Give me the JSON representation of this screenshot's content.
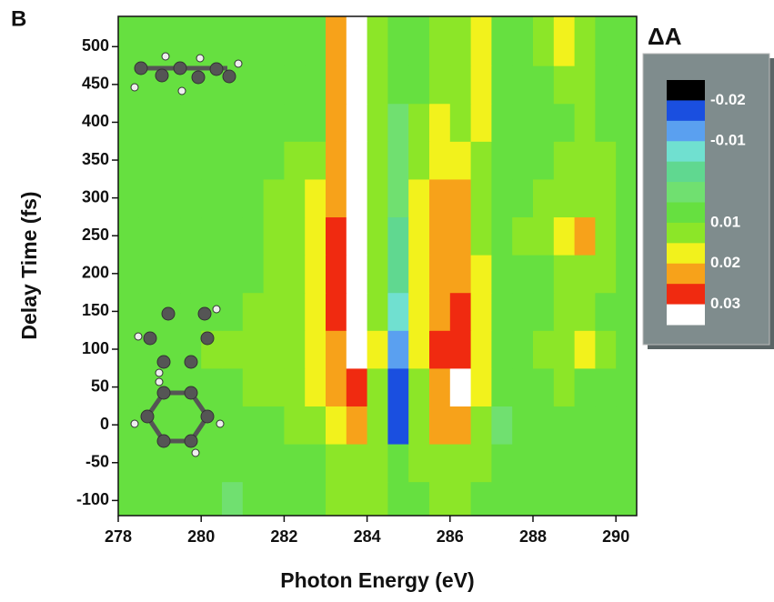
{
  "chart_data": {
    "type": "heatmap",
    "panel_label": "B",
    "x_label": "Photon Energy (eV)",
    "y_label": "Delay Time (fs)",
    "colorbar_title": "ΔA",
    "x": [
      278.25,
      278.75,
      279.25,
      279.75,
      280.25,
      280.75,
      281.25,
      281.75,
      282.25,
      282.75,
      283.25,
      283.75,
      284.25,
      284.75,
      285.25,
      285.75,
      286.25,
      286.75,
      287.25,
      287.75,
      288.25,
      288.75,
      289.25,
      289.75,
      290.25
    ],
    "y": [
      -100,
      -50,
      0,
      50,
      100,
      150,
      200,
      250,
      300,
      350,
      400,
      450,
      500
    ],
    "values": [
      [
        0.006,
        0.006,
        0.005,
        0.006,
        0.005,
        0.004,
        0.005,
        0.006,
        0.007,
        0.008,
        0.01,
        0.012,
        0.01,
        0.008,
        0.009,
        0.012,
        0.012,
        0.009,
        0.007,
        0.006,
        0.006,
        0.007,
        0.008,
        0.007,
        0.005
      ],
      [
        0.007,
        0.007,
        0.006,
        0.006,
        0.006,
        0.005,
        0.006,
        0.007,
        0.008,
        0.009,
        0.011,
        0.014,
        0.011,
        0.007,
        0.01,
        0.013,
        0.014,
        0.01,
        0.005,
        0.006,
        0.007,
        0.007,
        0.008,
        0.007,
        0.006
      ],
      [
        0.008,
        0.008,
        0.007,
        0.007,
        0.007,
        0.007,
        0.008,
        0.009,
        0.01,
        0.012,
        0.016,
        0.022,
        0.013,
        -0.018,
        0.012,
        0.022,
        0.024,
        0.013,
        0.004,
        0.007,
        0.008,
        0.008,
        0.009,
        0.008,
        0.007
      ],
      [
        0.008,
        0.009,
        0.008,
        0.008,
        0.009,
        0.009,
        0.01,
        0.011,
        0.012,
        0.015,
        0.02,
        0.028,
        0.014,
        -0.016,
        0.014,
        0.024,
        0.031,
        0.015,
        0.006,
        0.008,
        0.009,
        0.01,
        0.009,
        0.008,
        0.007
      ],
      [
        0.009,
        0.009,
        0.009,
        0.009,
        0.01,
        0.01,
        0.011,
        0.012,
        0.013,
        0.016,
        0.024,
        0.032,
        0.015,
        -0.014,
        0.015,
        0.025,
        0.028,
        0.016,
        0.006,
        0.009,
        0.01,
        0.012,
        0.018,
        0.01,
        0.008
      ],
      [
        0.008,
        0.008,
        0.008,
        0.008,
        0.009,
        0.009,
        0.01,
        0.011,
        0.013,
        0.017,
        0.025,
        0.03,
        0.014,
        -0.008,
        0.016,
        0.024,
        0.025,
        0.015,
        0.006,
        0.009,
        0.009,
        0.01,
        0.011,
        0.009,
        0.008
      ],
      [
        0.008,
        0.008,
        0.008,
        0.008,
        0.008,
        0.009,
        0.009,
        0.01,
        0.012,
        0.016,
        0.026,
        0.033,
        0.014,
        -0.004,
        0.017,
        0.023,
        0.024,
        0.015,
        0.008,
        0.009,
        0.009,
        0.01,
        0.012,
        0.01,
        0.008
      ],
      [
        0.008,
        0.008,
        0.008,
        0.008,
        0.008,
        0.008,
        0.009,
        0.01,
        0.012,
        0.015,
        0.026,
        0.034,
        0.013,
        -0.003,
        0.016,
        0.022,
        0.023,
        0.014,
        0.006,
        0.01,
        0.011,
        0.015,
        0.024,
        0.011,
        0.009
      ],
      [
        0.008,
        0.008,
        0.008,
        0.008,
        0.008,
        0.008,
        0.009,
        0.01,
        0.012,
        0.016,
        0.024,
        0.033,
        0.013,
        0.002,
        0.016,
        0.021,
        0.022,
        0.014,
        0.008,
        0.009,
        0.01,
        0.011,
        0.014,
        0.01,
        0.009
      ],
      [
        0.009,
        0.009,
        0.009,
        0.009,
        0.009,
        0.009,
        0.009,
        0.009,
        0.01,
        0.011,
        0.022,
        0.032,
        0.012,
        0.003,
        0.013,
        0.016,
        0.015,
        0.013,
        0.009,
        0.009,
        0.009,
        0.01,
        0.011,
        0.01,
        0.009
      ],
      [
        0.008,
        0.008,
        0.008,
        0.008,
        0.008,
        0.008,
        0.008,
        0.008,
        0.009,
        0.009,
        0.022,
        0.033,
        0.011,
        0.004,
        0.01,
        0.015,
        0.011,
        0.017,
        0.009,
        0.008,
        0.008,
        0.009,
        0.01,
        0.009,
        0.008
      ],
      [
        0.008,
        0.008,
        0.008,
        0.008,
        0.008,
        0.008,
        0.008,
        0.008,
        0.008,
        0.009,
        0.021,
        0.033,
        0.011,
        0.005,
        0.009,
        0.013,
        0.01,
        0.016,
        0.009,
        0.008,
        0.009,
        0.012,
        0.013,
        0.009,
        0.008
      ],
      [
        0.008,
        0.008,
        0.008,
        0.008,
        0.008,
        0.008,
        0.008,
        0.008,
        0.008,
        0.009,
        0.021,
        0.034,
        0.011,
        0.006,
        0.009,
        0.011,
        0.01,
        0.019,
        0.009,
        0.008,
        0.01,
        0.016,
        0.012,
        0.009,
        0.008
      ]
    ],
    "xlim": [
      278,
      290.5
    ],
    "xticks": [
      278,
      280,
      282,
      284,
      286,
      288,
      290
    ],
    "ylim": [
      -120,
      540
    ],
    "yticks": [
      -100,
      -50,
      0,
      50,
      100,
      150,
      200,
      250,
      300,
      350,
      400,
      450,
      500
    ],
    "levels": [
      -0.025,
      -0.02,
      -0.015,
      -0.01,
      -0.005,
      0,
      0.005,
      0.01,
      0.015,
      0.02,
      0.025,
      0.03,
      0.035
    ],
    "colors": [
      "#000000",
      "#1a4fe0",
      "#5aa0f0",
      "#70e0d0",
      "#60d890",
      "#70e070",
      "#66e040",
      "#8ce628",
      "#f2f21c",
      "#f7a21a",
      "#f02a10",
      "#ffffff"
    ],
    "colorbar_ticks": [
      -0.02,
      -0.01,
      0.01,
      0.02,
      0.03
    ]
  }
}
